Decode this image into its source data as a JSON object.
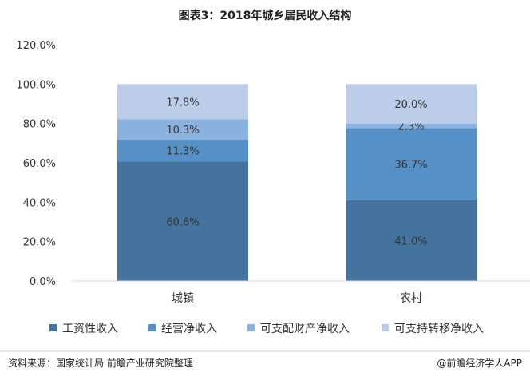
{
  "chart_data": {
    "type": "bar",
    "stacked": true,
    "title": "图表3：2018年城乡居民收入结构",
    "categories": [
      "城镇",
      "农村"
    ],
    "ylim": [
      0,
      120
    ],
    "ytick_labels": [
      "0.0%",
      "20.0%",
      "40.0%",
      "60.0%",
      "80.0%",
      "100.0%",
      "120.0%"
    ],
    "grid": false,
    "legend_position": "bottom",
    "series": [
      {
        "name": "工资性收入",
        "values": [
          60.6,
          41.0
        ],
        "labels": [
          "60.6%",
          "41.0%"
        ],
        "color": "#44739f"
      },
      {
        "name": "经营净收入",
        "values": [
          11.3,
          36.7
        ],
        "labels": [
          "11.3%",
          "36.7%"
        ],
        "color": "#5591c6"
      },
      {
        "name": "可支配财产净收入",
        "values": [
          10.3,
          2.3
        ],
        "labels": [
          "10.3%",
          "2.3%"
        ],
        "color": "#8bb2df"
      },
      {
        "name": "可支持转移净收入",
        "values": [
          17.8,
          20.0
        ],
        "labels": [
          "17.8%",
          "20.0%"
        ],
        "color": "#bccde9"
      }
    ]
  },
  "footer": {
    "source": "资料来源：国家统计局 前瞻产业研究院整理",
    "brand": "@前瞻经济学人APP"
  }
}
